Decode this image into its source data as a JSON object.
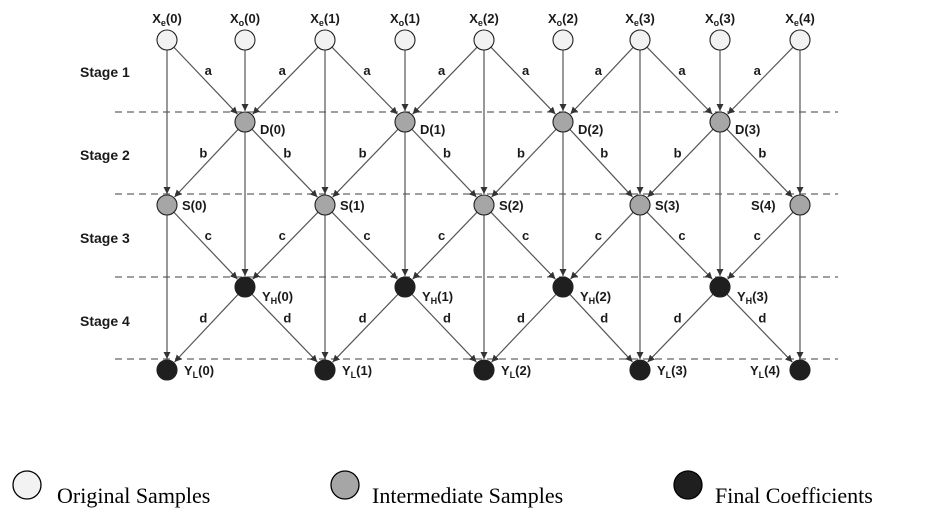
{
  "stages": [
    "Stage 1",
    "Stage 2",
    "Stage 3",
    "Stage 4"
  ],
  "top_nodes": [
    {
      "base": "X",
      "sub": "e",
      "idx": "(0)"
    },
    {
      "base": "X",
      "sub": "o",
      "idx": "(0)"
    },
    {
      "base": "X",
      "sub": "e",
      "idx": "(1)"
    },
    {
      "base": "X",
      "sub": "o",
      "idx": "(1)"
    },
    {
      "base": "X",
      "sub": "e",
      "idx": "(2)"
    },
    {
      "base": "X",
      "sub": "o",
      "idx": "(2)"
    },
    {
      "base": "X",
      "sub": "e",
      "idx": "(3)"
    },
    {
      "base": "X",
      "sub": "o",
      "idx": "(3)"
    },
    {
      "base": "X",
      "sub": "e",
      "idx": "(4)"
    }
  ],
  "d_nodes": [
    "D(0)",
    "D(1)",
    "D(2)",
    "D(3)"
  ],
  "s_nodes": [
    "S(0)",
    "S(1)",
    "S(2)",
    "S(3)",
    "S(4)"
  ],
  "yh_nodes": [
    {
      "base": "Y",
      "sub": "H",
      "idx": "(0)"
    },
    {
      "base": "Y",
      "sub": "H",
      "idx": "(1)"
    },
    {
      "base": "Y",
      "sub": "H",
      "idx": "(2)"
    },
    {
      "base": "Y",
      "sub": "H",
      "idx": "(3)"
    }
  ],
  "yl_nodes": [
    {
      "base": "Y",
      "sub": "L",
      "idx": "(0)"
    },
    {
      "base": "Y",
      "sub": "L",
      "idx": "(1)"
    },
    {
      "base": "Y",
      "sub": "L",
      "idx": "(2)"
    },
    {
      "base": "Y",
      "sub": "L",
      "idx": "(3)"
    },
    {
      "base": "Y",
      "sub": "L",
      "idx": "(4)"
    }
  ],
  "coefficients": {
    "stage1": "a",
    "stage2": "b",
    "stage3": "c",
    "stage4": "d"
  },
  "colors": {
    "original": "#f2f2f2",
    "intermediate": "#a6a6a6",
    "final": "#1f1f1f",
    "line": "#555555"
  },
  "legend": [
    {
      "kind": "original",
      "label": "Original Samples"
    },
    {
      "kind": "intermediate",
      "label": "Intermediate Samples"
    },
    {
      "kind": "final",
      "label": "Final Coefficients"
    }
  ]
}
